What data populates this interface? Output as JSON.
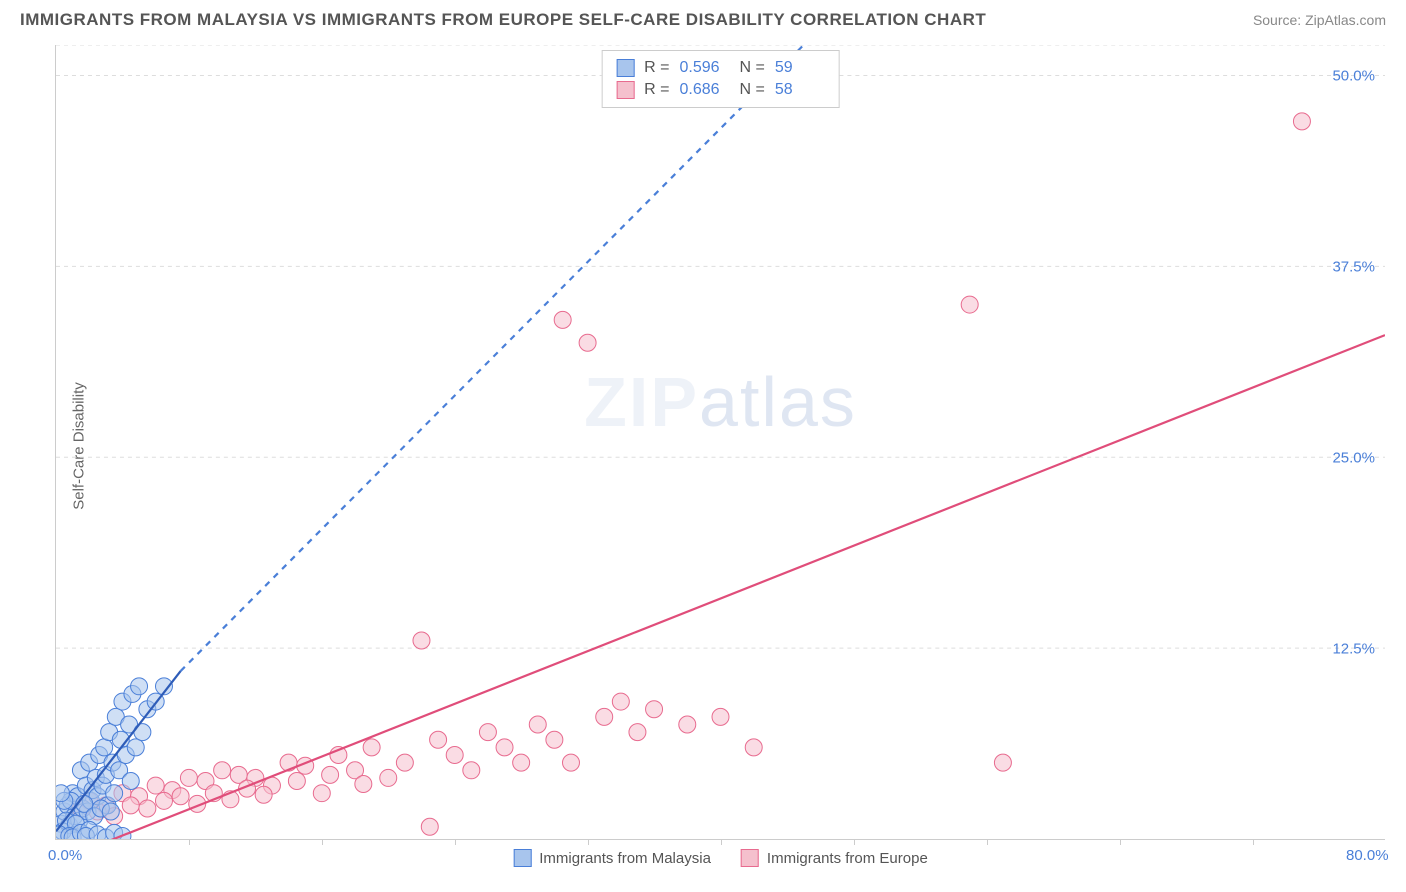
{
  "header": {
    "title": "IMMIGRANTS FROM MALAYSIA VS IMMIGRANTS FROM EUROPE SELF-CARE DISABILITY CORRELATION CHART",
    "source": "Source: ZipAtlas.com"
  },
  "ylabel": "Self-Care Disability",
  "watermark": {
    "bold": "ZIP",
    "light": "atlas"
  },
  "chart": {
    "type": "scatter",
    "xlim": [
      0,
      80
    ],
    "ylim": [
      0,
      52
    ],
    "grid_color": "#dddddd",
    "axis_color": "#cccccc",
    "background_color": "#ffffff",
    "yticks": [
      {
        "v": 12.5,
        "label": "12.5%"
      },
      {
        "v": 25.0,
        "label": "25.0%"
      },
      {
        "v": 37.5,
        "label": "37.5%"
      },
      {
        "v": 50.0,
        "label": "50.0%"
      }
    ],
    "xticks_labels": [
      {
        "v": 0,
        "label": "0.0%"
      },
      {
        "v": 80,
        "label": "80.0%"
      }
    ],
    "xticks_marks": [
      8,
      16,
      24,
      32,
      40,
      48,
      56,
      64,
      72
    ],
    "watermark_color": "#eef2f8",
    "tick_label_color": "#4a7fd8",
    "axis_label_color": "#666666",
    "title_color": "#555555",
    "source_color": "#888888",
    "marker_radius": 8.5,
    "marker_opacity": 0.55,
    "line_width": 2.2
  },
  "series": {
    "malaysia": {
      "label": "Immigrants from Malaysia",
      "fill": "#a8c5ed",
      "stroke": "#4a7fd8",
      "line_color": "#2e5cb8",
      "R": "0.596",
      "N": "59",
      "points": [
        [
          0.3,
          1.0
        ],
        [
          0.5,
          1.8
        ],
        [
          0.7,
          2.2
        ],
        [
          0.8,
          0.9
        ],
        [
          1.0,
          3.0
        ],
        [
          1.1,
          1.5
        ],
        [
          1.3,
          2.8
        ],
        [
          1.4,
          1.2
        ],
        [
          1.5,
          4.5
        ],
        [
          1.6,
          2.0
        ],
        [
          1.8,
          3.5
        ],
        [
          1.9,
          1.8
        ],
        [
          2.0,
          5.0
        ],
        [
          2.1,
          2.5
        ],
        [
          2.2,
          3.2
        ],
        [
          2.4,
          4.0
        ],
        [
          2.5,
          2.8
        ],
        [
          2.6,
          5.5
        ],
        [
          2.8,
          3.5
        ],
        [
          2.9,
          6.0
        ],
        [
          3.0,
          4.2
        ],
        [
          3.1,
          2.2
        ],
        [
          3.2,
          7.0
        ],
        [
          3.4,
          5.0
        ],
        [
          3.5,
          3.0
        ],
        [
          3.6,
          8.0
        ],
        [
          3.8,
          4.5
        ],
        [
          3.9,
          6.5
        ],
        [
          4.0,
          9.0
        ],
        [
          4.2,
          5.5
        ],
        [
          4.4,
          7.5
        ],
        [
          4.5,
          3.8
        ],
        [
          4.6,
          9.5
        ],
        [
          4.8,
          6.0
        ],
        [
          5.0,
          10.0
        ],
        [
          5.2,
          7.0
        ],
        [
          5.5,
          8.5
        ],
        [
          6.0,
          9.0
        ],
        [
          6.5,
          10.0
        ],
        [
          0.4,
          0.5
        ],
        [
          0.6,
          1.2
        ],
        [
          0.9,
          2.5
        ],
        [
          1.2,
          1.0
        ],
        [
          1.7,
          2.3
        ],
        [
          2.3,
          1.5
        ],
        [
          2.7,
          2.0
        ],
        [
          3.3,
          1.8
        ],
        [
          0.2,
          0.3
        ],
        [
          0.8,
          0.2
        ],
        [
          1.0,
          0.1
        ],
        [
          1.5,
          0.4
        ],
        [
          2.0,
          0.6
        ],
        [
          0.5,
          2.5
        ],
        [
          0.3,
          3.0
        ],
        [
          1.8,
          0.2
        ],
        [
          2.5,
          0.3
        ],
        [
          3.0,
          0.1
        ],
        [
          3.5,
          0.4
        ],
        [
          4.0,
          0.2
        ]
      ],
      "trend": {
        "x1": 0,
        "y1": 0.5,
        "x2": 7.5,
        "y2": 11.0,
        "extend_x2": 45,
        "extend_y2": 52
      }
    },
    "europe": {
      "label": "Immigrants from Europe",
      "fill": "#f5c0cd",
      "stroke": "#e86b8f",
      "line_color": "#e04d7a",
      "R": "0.686",
      "N": "58",
      "points": [
        [
          1.5,
          2.0
        ],
        [
          2.0,
          2.5
        ],
        [
          3.0,
          2.2
        ],
        [
          4.0,
          3.0
        ],
        [
          5.0,
          2.8
        ],
        [
          6.0,
          3.5
        ],
        [
          7.0,
          3.2
        ],
        [
          8.0,
          4.0
        ],
        [
          9.0,
          3.8
        ],
        [
          10.0,
          4.5
        ],
        [
          11.0,
          4.2
        ],
        [
          12.0,
          4.0
        ],
        [
          13.0,
          3.5
        ],
        [
          14.0,
          5.0
        ],
        [
          15.0,
          4.8
        ],
        [
          16.0,
          3.0
        ],
        [
          17.0,
          5.5
        ],
        [
          18.0,
          4.5
        ],
        [
          19.0,
          6.0
        ],
        [
          20.0,
          4.0
        ],
        [
          21.0,
          5.0
        ],
        [
          22.0,
          13.0
        ],
        [
          23.0,
          6.5
        ],
        [
          24.0,
          5.5
        ],
        [
          25.0,
          4.5
        ],
        [
          26.0,
          7.0
        ],
        [
          27.0,
          6.0
        ],
        [
          28.0,
          5.0
        ],
        [
          29.0,
          7.5
        ],
        [
          30.0,
          6.5
        ],
        [
          30.5,
          34.0
        ],
        [
          31.0,
          5.0
        ],
        [
          32.0,
          32.5
        ],
        [
          33.0,
          8.0
        ],
        [
          34.0,
          9.0
        ],
        [
          35.0,
          7.0
        ],
        [
          36.0,
          8.5
        ],
        [
          38.0,
          7.5
        ],
        [
          40.0,
          8.0
        ],
        [
          42.0,
          6.0
        ],
        [
          55.0,
          35.0
        ],
        [
          57.0,
          5.0
        ],
        [
          75.0,
          47.0
        ],
        [
          2.5,
          1.8
        ],
        [
          3.5,
          1.5
        ],
        [
          4.5,
          2.2
        ],
        [
          5.5,
          2.0
        ],
        [
          6.5,
          2.5
        ],
        [
          7.5,
          2.8
        ],
        [
          8.5,
          2.3
        ],
        [
          9.5,
          3.0
        ],
        [
          10.5,
          2.6
        ],
        [
          11.5,
          3.3
        ],
        [
          12.5,
          2.9
        ],
        [
          14.5,
          3.8
        ],
        [
          16.5,
          4.2
        ],
        [
          18.5,
          3.6
        ],
        [
          22.5,
          0.8
        ]
      ],
      "trend": {
        "x1": 0,
        "y1": -1.5,
        "x2": 80,
        "y2": 33.0
      }
    }
  },
  "stats_labels": {
    "R": "R =",
    "N": "N ="
  },
  "legend": {
    "items": [
      "malaysia",
      "europe"
    ]
  }
}
